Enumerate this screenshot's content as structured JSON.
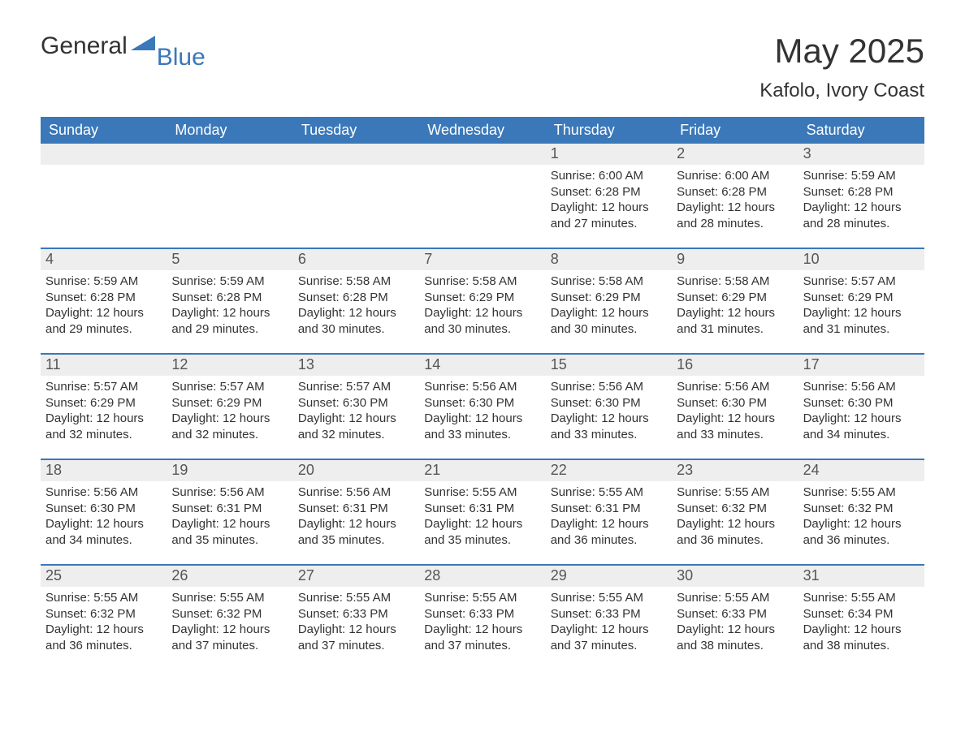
{
  "logo": {
    "textA": "General",
    "textB": "Blue"
  },
  "title": "May 2025",
  "subtitle": "Kafolo, Ivory Coast",
  "colors": {
    "header_bg": "#3a78b9",
    "header_text": "#ffffff",
    "daynum_bg": "#eeeeee",
    "daynum_text": "#555555",
    "body_text": "#333333",
    "rule": "#3a78b9",
    "page_bg": "#ffffff",
    "logo_blue": "#3a78b9"
  },
  "dayHeaders": [
    "Sunday",
    "Monday",
    "Tuesday",
    "Wednesday",
    "Thursday",
    "Friday",
    "Saturday"
  ],
  "weeks": [
    [
      {
        "empty": true
      },
      {
        "empty": true
      },
      {
        "empty": true
      },
      {
        "empty": true
      },
      {
        "n": "1",
        "sunrise": "6:00 AM",
        "sunset": "6:28 PM",
        "dayh": "12",
        "daym": "27"
      },
      {
        "n": "2",
        "sunrise": "6:00 AM",
        "sunset": "6:28 PM",
        "dayh": "12",
        "daym": "28"
      },
      {
        "n": "3",
        "sunrise": "5:59 AM",
        "sunset": "6:28 PM",
        "dayh": "12",
        "daym": "28"
      }
    ],
    [
      {
        "n": "4",
        "sunrise": "5:59 AM",
        "sunset": "6:28 PM",
        "dayh": "12",
        "daym": "29"
      },
      {
        "n": "5",
        "sunrise": "5:59 AM",
        "sunset": "6:28 PM",
        "dayh": "12",
        "daym": "29"
      },
      {
        "n": "6",
        "sunrise": "5:58 AM",
        "sunset": "6:28 PM",
        "dayh": "12",
        "daym": "30"
      },
      {
        "n": "7",
        "sunrise": "5:58 AM",
        "sunset": "6:29 PM",
        "dayh": "12",
        "daym": "30"
      },
      {
        "n": "8",
        "sunrise": "5:58 AM",
        "sunset": "6:29 PM",
        "dayh": "12",
        "daym": "30"
      },
      {
        "n": "9",
        "sunrise": "5:58 AM",
        "sunset": "6:29 PM",
        "dayh": "12",
        "daym": "31"
      },
      {
        "n": "10",
        "sunrise": "5:57 AM",
        "sunset": "6:29 PM",
        "dayh": "12",
        "daym": "31"
      }
    ],
    [
      {
        "n": "11",
        "sunrise": "5:57 AM",
        "sunset": "6:29 PM",
        "dayh": "12",
        "daym": "32"
      },
      {
        "n": "12",
        "sunrise": "5:57 AM",
        "sunset": "6:29 PM",
        "dayh": "12",
        "daym": "32"
      },
      {
        "n": "13",
        "sunrise": "5:57 AM",
        "sunset": "6:30 PM",
        "dayh": "12",
        "daym": "32"
      },
      {
        "n": "14",
        "sunrise": "5:56 AM",
        "sunset": "6:30 PM",
        "dayh": "12",
        "daym": "33"
      },
      {
        "n": "15",
        "sunrise": "5:56 AM",
        "sunset": "6:30 PM",
        "dayh": "12",
        "daym": "33"
      },
      {
        "n": "16",
        "sunrise": "5:56 AM",
        "sunset": "6:30 PM",
        "dayh": "12",
        "daym": "33"
      },
      {
        "n": "17",
        "sunrise": "5:56 AM",
        "sunset": "6:30 PM",
        "dayh": "12",
        "daym": "34"
      }
    ],
    [
      {
        "n": "18",
        "sunrise": "5:56 AM",
        "sunset": "6:30 PM",
        "dayh": "12",
        "daym": "34"
      },
      {
        "n": "19",
        "sunrise": "5:56 AM",
        "sunset": "6:31 PM",
        "dayh": "12",
        "daym": "35"
      },
      {
        "n": "20",
        "sunrise": "5:56 AM",
        "sunset": "6:31 PM",
        "dayh": "12",
        "daym": "35"
      },
      {
        "n": "21",
        "sunrise": "5:55 AM",
        "sunset": "6:31 PM",
        "dayh": "12",
        "daym": "35"
      },
      {
        "n": "22",
        "sunrise": "5:55 AM",
        "sunset": "6:31 PM",
        "dayh": "12",
        "daym": "36"
      },
      {
        "n": "23",
        "sunrise": "5:55 AM",
        "sunset": "6:32 PM",
        "dayh": "12",
        "daym": "36"
      },
      {
        "n": "24",
        "sunrise": "5:55 AM",
        "sunset": "6:32 PM",
        "dayh": "12",
        "daym": "36"
      }
    ],
    [
      {
        "n": "25",
        "sunrise": "5:55 AM",
        "sunset": "6:32 PM",
        "dayh": "12",
        "daym": "36"
      },
      {
        "n": "26",
        "sunrise": "5:55 AM",
        "sunset": "6:32 PM",
        "dayh": "12",
        "daym": "37"
      },
      {
        "n": "27",
        "sunrise": "5:55 AM",
        "sunset": "6:33 PM",
        "dayh": "12",
        "daym": "37"
      },
      {
        "n": "28",
        "sunrise": "5:55 AM",
        "sunset": "6:33 PM",
        "dayh": "12",
        "daym": "37"
      },
      {
        "n": "29",
        "sunrise": "5:55 AM",
        "sunset": "6:33 PM",
        "dayh": "12",
        "daym": "37"
      },
      {
        "n": "30",
        "sunrise": "5:55 AM",
        "sunset": "6:33 PM",
        "dayh": "12",
        "daym": "38"
      },
      {
        "n": "31",
        "sunrise": "5:55 AM",
        "sunset": "6:34 PM",
        "dayh": "12",
        "daym": "38"
      }
    ]
  ],
  "labels": {
    "sunrise": "Sunrise: ",
    "sunset": "Sunset: ",
    "daylightA": "Daylight: ",
    "daylightB": " hours and ",
    "daylightC": " minutes."
  }
}
